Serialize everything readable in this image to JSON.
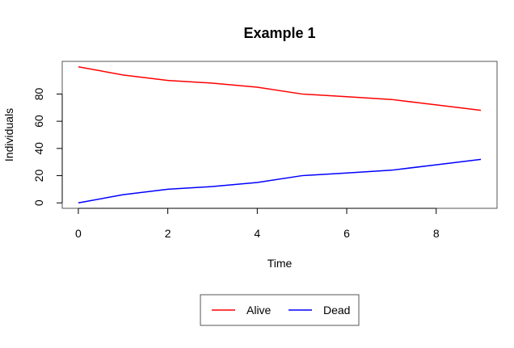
{
  "chart_data": {
    "type": "line",
    "title": "Example 1",
    "xlabel": "Time",
    "ylabel": "Individuals",
    "x": [
      0,
      1,
      2,
      3,
      4,
      5,
      6,
      7,
      8,
      9
    ],
    "xlim": [
      -0.36,
      9.36
    ],
    "ylim": [
      -4,
      104
    ],
    "xticks": [
      0,
      2,
      4,
      6,
      8
    ],
    "yticks": [
      0,
      20,
      40,
      60,
      80
    ],
    "grid": false,
    "legend_position": "bottom",
    "series": [
      {
        "name": "Alive",
        "color": "#ff0000",
        "values": [
          100,
          94,
          90,
          88,
          85,
          80,
          78,
          76,
          72,
          68
        ]
      },
      {
        "name": "Dead",
        "color": "#0000ff",
        "values": [
          0,
          6,
          10,
          12,
          15,
          20,
          22,
          24,
          28,
          32
        ]
      }
    ]
  }
}
